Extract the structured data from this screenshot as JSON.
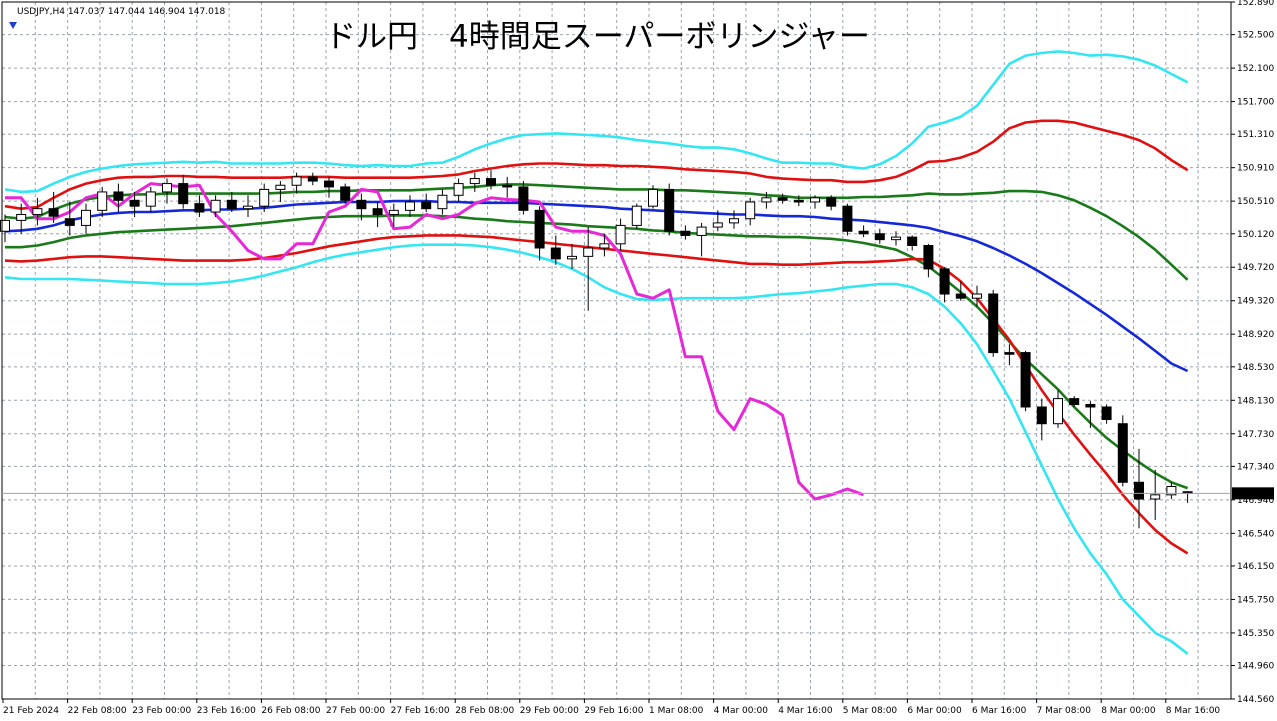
{
  "header": {
    "symbol_info": "USDJPY,H4  147.037 147.044 146.904 147.018",
    "title": "ドル円　4時間足スーパーボリンジャー"
  },
  "colors": {
    "background": "#ffffff",
    "grid": "#9aa3ad",
    "axis": "#000000",
    "sigma3": "#33e6f2",
    "sigma2": "#e01010",
    "sigma1": "#1a7a1a",
    "mid": "#1428d8",
    "lagging": "#e628d6",
    "candle_bull": "#ffffff",
    "candle_bear": "#000000",
    "price_tag_bg": "#000000",
    "price_tag_fg": "#ffffff",
    "expert_marker": "#1f3fc9"
  },
  "icons": {
    "expert_marker": "down-triangle-icon"
  },
  "chart_data": {
    "type": "candlestick",
    "symbol": "USDJPY",
    "timeframe": "H4",
    "current_price_label": "147.018",
    "y_ticks": [
      "152.890",
      "152.500",
      "152.100",
      "151.700",
      "151.310",
      "150.910",
      "150.510",
      "150.120",
      "149.720",
      "149.320",
      "148.920",
      "148.530",
      "148.130",
      "147.730",
      "147.340",
      "146.940",
      "146.540",
      "146.150",
      "145.750",
      "145.350",
      "144.960",
      "144.560"
    ],
    "x_ticks": [
      "21 Feb 2024",
      "22 Feb 08:00",
      "23 Feb 00:00",
      "23 Feb 16:00",
      "26 Feb 08:00",
      "27 Feb 00:00",
      "27 Feb 16:00",
      "28 Feb 08:00",
      "29 Feb 00:00",
      "29 Feb 16:00",
      "1 Mar 08:00",
      "4 Mar 00:00",
      "4 Mar 16:00",
      "5 Mar 08:00",
      "6 Mar 00:00",
      "6 Mar 16:00",
      "7 Mar 08:00",
      "8 Mar 00:00",
      "8 Mar 16:00"
    ],
    "bar_count": 74,
    "ylim": [
      144.56,
      152.89
    ],
    "candles": [
      {
        "o": 150.15,
        "h": 150.35,
        "l": 150.02,
        "c": 150.28
      },
      {
        "o": 150.28,
        "h": 150.48,
        "l": 150.12,
        "c": 150.35
      },
      {
        "o": 150.35,
        "h": 150.55,
        "l": 150.22,
        "c": 150.42
      },
      {
        "o": 150.42,
        "h": 150.62,
        "l": 150.25,
        "c": 150.33
      },
      {
        "o": 150.3,
        "h": 150.5,
        "l": 150.1,
        "c": 150.22
      },
      {
        "o": 150.22,
        "h": 150.48,
        "l": 150.12,
        "c": 150.4
      },
      {
        "o": 150.4,
        "h": 150.68,
        "l": 150.32,
        "c": 150.62
      },
      {
        "o": 150.62,
        "h": 150.72,
        "l": 150.38,
        "c": 150.52
      },
      {
        "o": 150.52,
        "h": 150.62,
        "l": 150.32,
        "c": 150.45
      },
      {
        "o": 150.45,
        "h": 150.68,
        "l": 150.38,
        "c": 150.62
      },
      {
        "o": 150.62,
        "h": 150.78,
        "l": 150.48,
        "c": 150.72
      },
      {
        "o": 150.72,
        "h": 150.82,
        "l": 150.42,
        "c": 150.48
      },
      {
        "o": 150.48,
        "h": 150.58,
        "l": 150.32,
        "c": 150.38
      },
      {
        "o": 150.38,
        "h": 150.58,
        "l": 150.32,
        "c": 150.52
      },
      {
        "o": 150.52,
        "h": 150.62,
        "l": 150.38,
        "c": 150.42
      },
      {
        "o": 150.42,
        "h": 150.58,
        "l": 150.32,
        "c": 150.45
      },
      {
        "o": 150.45,
        "h": 150.72,
        "l": 150.38,
        "c": 150.65
      },
      {
        "o": 150.65,
        "h": 150.75,
        "l": 150.5,
        "c": 150.7
      },
      {
        "o": 150.7,
        "h": 150.85,
        "l": 150.6,
        "c": 150.8
      },
      {
        "o": 150.8,
        "h": 150.85,
        "l": 150.7,
        "c": 150.75
      },
      {
        "o": 150.75,
        "h": 150.8,
        "l": 150.55,
        "c": 150.68
      },
      {
        "o": 150.68,
        "h": 150.72,
        "l": 150.48,
        "c": 150.52
      },
      {
        "o": 150.52,
        "h": 150.6,
        "l": 150.28,
        "c": 150.42
      },
      {
        "o": 150.42,
        "h": 150.5,
        "l": 150.2,
        "c": 150.35
      },
      {
        "o": 150.35,
        "h": 150.48,
        "l": 150.2,
        "c": 150.4
      },
      {
        "o": 150.4,
        "h": 150.58,
        "l": 150.32,
        "c": 150.5
      },
      {
        "o": 150.5,
        "h": 150.6,
        "l": 150.38,
        "c": 150.42
      },
      {
        "o": 150.42,
        "h": 150.65,
        "l": 150.35,
        "c": 150.58
      },
      {
        "o": 150.58,
        "h": 150.78,
        "l": 150.5,
        "c": 150.72
      },
      {
        "o": 150.72,
        "h": 150.85,
        "l": 150.62,
        "c": 150.78
      },
      {
        "o": 150.78,
        "h": 150.88,
        "l": 150.65,
        "c": 150.7
      },
      {
        "o": 150.7,
        "h": 150.8,
        "l": 150.55,
        "c": 150.68
      },
      {
        "o": 150.68,
        "h": 150.75,
        "l": 150.35,
        "c": 150.4
      },
      {
        "o": 150.4,
        "h": 150.45,
        "l": 149.8,
        "c": 149.95
      },
      {
        "o": 149.95,
        "h": 150.1,
        "l": 149.75,
        "c": 149.82
      },
      {
        "o": 149.82,
        "h": 150.0,
        "l": 149.7,
        "c": 149.85
      },
      {
        "o": 149.85,
        "h": 150.2,
        "l": 149.2,
        "c": 149.95
      },
      {
        "o": 149.95,
        "h": 150.12,
        "l": 149.85,
        "c": 150.0
      },
      {
        "o": 150.0,
        "h": 150.3,
        "l": 149.92,
        "c": 150.22
      },
      {
        "o": 150.22,
        "h": 150.48,
        "l": 150.18,
        "c": 150.45
      },
      {
        "o": 150.45,
        "h": 150.7,
        "l": 150.42,
        "c": 150.65
      },
      {
        "o": 150.65,
        "h": 150.72,
        "l": 150.1,
        "c": 150.15
      },
      {
        "o": 150.15,
        "h": 150.22,
        "l": 150.05,
        "c": 150.1
      },
      {
        "o": 150.1,
        "h": 150.25,
        "l": 149.85,
        "c": 150.2
      },
      {
        "o": 150.2,
        "h": 150.4,
        "l": 150.15,
        "c": 150.25
      },
      {
        "o": 150.25,
        "h": 150.4,
        "l": 150.18,
        "c": 150.3
      },
      {
        "o": 150.3,
        "h": 150.55,
        "l": 150.22,
        "c": 150.5
      },
      {
        "o": 150.5,
        "h": 150.62,
        "l": 150.42,
        "c": 150.55
      },
      {
        "o": 150.55,
        "h": 150.6,
        "l": 150.48,
        "c": 150.52
      },
      {
        "o": 150.52,
        "h": 150.58,
        "l": 150.45,
        "c": 150.5
      },
      {
        "o": 150.5,
        "h": 150.58,
        "l": 150.42,
        "c": 150.55
      },
      {
        "o": 150.55,
        "h": 150.58,
        "l": 150.4,
        "c": 150.45
      },
      {
        "o": 150.45,
        "h": 150.48,
        "l": 150.1,
        "c": 150.15
      },
      {
        "o": 150.15,
        "h": 150.22,
        "l": 150.08,
        "c": 150.12
      },
      {
        "o": 150.12,
        "h": 150.18,
        "l": 150.0,
        "c": 150.05
      },
      {
        "o": 150.05,
        "h": 150.15,
        "l": 149.98,
        "c": 150.08
      },
      {
        "o": 150.08,
        "h": 150.1,
        "l": 149.92,
        "c": 149.98
      },
      {
        "o": 149.98,
        "h": 150.0,
        "l": 149.6,
        "c": 149.7
      },
      {
        "o": 149.7,
        "h": 149.72,
        "l": 149.3,
        "c": 149.4
      },
      {
        "o": 149.4,
        "h": 149.55,
        "l": 149.32,
        "c": 149.35
      },
      {
        "o": 149.35,
        "h": 149.5,
        "l": 149.25,
        "c": 149.4
      },
      {
        "o": 149.4,
        "h": 149.45,
        "l": 148.65,
        "c": 148.7
      },
      {
        "o": 148.7,
        "h": 148.8,
        "l": 148.55,
        "c": 148.68
      },
      {
        "o": 148.7,
        "h": 148.72,
        "l": 148.0,
        "c": 148.05
      },
      {
        "o": 148.05,
        "h": 148.15,
        "l": 147.65,
        "c": 147.85
      },
      {
        "o": 147.85,
        "h": 148.25,
        "l": 147.8,
        "c": 148.15
      },
      {
        "o": 148.15,
        "h": 148.18,
        "l": 148.05,
        "c": 148.08
      },
      {
        "o": 148.08,
        "h": 148.12,
        "l": 147.8,
        "c": 148.05
      },
      {
        "o": 148.05,
        "h": 148.08,
        "l": 147.85,
        "c": 147.9
      },
      {
        "o": 147.85,
        "h": 147.95,
        "l": 147.1,
        "c": 147.15
      },
      {
        "o": 147.15,
        "h": 147.55,
        "l": 146.6,
        "c": 146.95
      },
      {
        "o": 146.95,
        "h": 147.3,
        "l": 146.7,
        "c": 147.0
      },
      {
        "o": 147.0,
        "h": 147.15,
        "l": 146.95,
        "c": 147.1
      },
      {
        "o": 147.037,
        "h": 147.044,
        "l": 146.904,
        "c": 147.018
      }
    ],
    "bands": [
      {
        "name": "+3σ",
        "color": "#33e6f2",
        "values": [
          150.65,
          150.62,
          150.63,
          150.72,
          150.8,
          150.86,
          150.9,
          150.93,
          150.95,
          150.96,
          150.97,
          150.98,
          150.97,
          150.98,
          150.96,
          150.96,
          150.96,
          150.96,
          150.97,
          150.97,
          150.96,
          150.94,
          150.93,
          150.94,
          150.93,
          150.93,
          150.96,
          150.97,
          151.04,
          151.13,
          151.2,
          151.26,
          151.3,
          151.31,
          151.32,
          151.31,
          151.3,
          151.29,
          151.27,
          151.24,
          151.22,
          151.2,
          151.17,
          151.15,
          151.15,
          151.13,
          151.08,
          151.02,
          150.97,
          150.97,
          150.96,
          150.96,
          150.92,
          150.9,
          150.95,
          151.05,
          151.2,
          151.4,
          151.45,
          151.52,
          151.65,
          151.9,
          152.15,
          152.25,
          152.28,
          152.3,
          152.28,
          152.25,
          152.26,
          152.24,
          152.2,
          152.13,
          152.03,
          151.93
        ]
      },
      {
        "name": "+2σ",
        "color": "#e01010",
        "values": [
          150.45,
          150.42,
          150.44,
          150.55,
          150.65,
          150.72,
          150.76,
          150.79,
          150.8,
          150.8,
          150.81,
          150.81,
          150.8,
          150.8,
          150.79,
          150.79,
          150.79,
          150.79,
          150.8,
          150.8,
          150.8,
          150.79,
          150.79,
          150.79,
          150.79,
          150.79,
          150.8,
          150.81,
          150.83,
          150.87,
          150.9,
          150.93,
          150.95,
          150.96,
          150.96,
          150.95,
          150.94,
          150.94,
          150.93,
          150.93,
          150.92,
          150.91,
          150.89,
          150.88,
          150.87,
          150.86,
          150.84,
          150.8,
          150.78,
          150.77,
          150.76,
          150.76,
          150.74,
          150.74,
          150.76,
          150.8,
          150.88,
          150.98,
          150.99,
          151.03,
          151.1,
          151.22,
          151.38,
          151.45,
          151.47,
          151.47,
          151.45,
          151.4,
          151.35,
          151.3,
          151.24,
          151.14,
          151.0,
          150.88
        ]
      },
      {
        "name": "+1σ",
        "color": "#1a7a1a",
        "values": [
          150.32,
          150.3,
          150.32,
          150.41,
          150.48,
          150.53,
          150.56,
          150.58,
          150.59,
          150.59,
          150.6,
          150.6,
          150.6,
          150.6,
          150.6,
          150.6,
          150.6,
          150.61,
          150.62,
          150.62,
          150.63,
          150.63,
          150.64,
          150.64,
          150.64,
          150.64,
          150.65,
          150.66,
          150.67,
          150.68,
          150.7,
          150.71,
          150.71,
          150.7,
          150.69,
          150.68,
          150.67,
          150.66,
          150.65,
          150.65,
          150.65,
          150.64,
          150.64,
          150.63,
          150.62,
          150.61,
          150.6,
          150.58,
          150.57,
          150.55,
          150.55,
          150.55,
          150.55,
          150.56,
          150.56,
          150.57,
          150.58,
          150.6,
          150.59,
          150.59,
          150.6,
          150.61,
          150.63,
          150.63,
          150.62,
          150.58,
          150.52,
          150.43,
          150.33,
          150.21,
          150.08,
          149.93,
          149.75,
          149.57
        ]
      },
      {
        "name": "MA",
        "color": "#1428d8",
        "values": [
          150.15,
          150.16,
          150.18,
          150.22,
          150.28,
          150.32,
          150.35,
          150.37,
          150.38,
          150.38,
          150.39,
          150.4,
          150.4,
          150.41,
          150.41,
          150.42,
          150.43,
          150.45,
          150.47,
          150.48,
          150.49,
          150.5,
          150.5,
          150.5,
          150.51,
          150.51,
          150.51,
          150.5,
          150.5,
          150.49,
          150.49,
          150.49,
          150.49,
          150.48,
          150.47,
          150.46,
          150.45,
          150.44,
          150.42,
          150.41,
          150.4,
          150.39,
          150.38,
          150.37,
          150.36,
          150.35,
          150.35,
          150.34,
          150.33,
          150.33,
          150.32,
          150.3,
          150.29,
          150.28,
          150.26,
          150.24,
          150.22,
          150.19,
          150.14,
          150.09,
          150.03,
          149.95,
          149.86,
          149.76,
          149.65,
          149.53,
          149.41,
          149.28,
          149.15,
          149.01,
          148.87,
          148.72,
          148.57,
          148.48
        ]
      },
      {
        "name": "-1σ",
        "color": "#1a7a1a",
        "values": [
          149.96,
          149.96,
          149.98,
          150.02,
          150.07,
          150.1,
          150.12,
          150.14,
          150.15,
          150.16,
          150.17,
          150.18,
          150.19,
          150.2,
          150.21,
          150.23,
          150.25,
          150.27,
          150.29,
          150.31,
          150.32,
          150.33,
          150.33,
          150.33,
          150.34,
          150.34,
          150.34,
          150.33,
          150.32,
          150.3,
          150.29,
          150.27,
          150.26,
          150.25,
          150.24,
          150.23,
          150.21,
          150.2,
          150.19,
          150.18,
          150.16,
          150.15,
          150.13,
          150.12,
          150.11,
          150.1,
          150.09,
          150.09,
          150.08,
          150.08,
          150.07,
          150.06,
          150.04,
          150.01,
          149.97,
          149.93,
          149.84,
          149.73,
          149.58,
          149.42,
          149.25,
          149.05,
          148.83,
          148.62,
          148.44,
          148.26,
          148.05,
          147.86,
          147.68,
          147.53,
          147.39,
          147.26,
          147.15,
          147.08
        ]
      },
      {
        "name": "-2σ",
        "color": "#e01010",
        "values": [
          149.8,
          149.79,
          149.8,
          149.82,
          149.84,
          149.85,
          149.85,
          149.84,
          149.83,
          149.82,
          149.81,
          149.8,
          149.8,
          149.8,
          149.8,
          149.81,
          149.83,
          149.86,
          149.89,
          149.93,
          149.97,
          150.0,
          150.03,
          150.06,
          150.08,
          150.09,
          150.1,
          150.1,
          150.1,
          150.09,
          150.08,
          150.06,
          150.04,
          150.02,
          150.0,
          149.98,
          149.96,
          149.94,
          149.92,
          149.9,
          149.88,
          149.86,
          149.84,
          149.82,
          149.8,
          149.78,
          149.76,
          149.76,
          149.75,
          149.75,
          149.76,
          149.77,
          149.78,
          149.78,
          149.79,
          149.8,
          149.82,
          149.81,
          149.7,
          149.55,
          149.35,
          149.1,
          148.85,
          148.55,
          148.25,
          147.98,
          147.72,
          147.48,
          147.25,
          147.0,
          146.78,
          146.58,
          146.42,
          146.3
        ]
      },
      {
        "name": "-3σ",
        "color": "#33e6f2",
        "values": [
          149.6,
          149.58,
          149.58,
          149.58,
          149.58,
          149.57,
          149.56,
          149.55,
          149.54,
          149.53,
          149.52,
          149.52,
          149.52,
          149.53,
          149.55,
          149.58,
          149.62,
          149.67,
          149.72,
          149.78,
          149.83,
          149.87,
          149.9,
          149.93,
          149.96,
          149.98,
          149.99,
          149.99,
          149.99,
          149.98,
          149.96,
          149.93,
          149.89,
          149.84,
          149.78,
          149.7,
          149.6,
          149.48,
          149.4,
          149.34,
          149.33,
          149.34,
          149.35,
          149.35,
          149.35,
          149.35,
          149.36,
          149.38,
          149.4,
          149.41,
          149.43,
          149.45,
          149.48,
          149.5,
          149.52,
          149.52,
          149.48,
          149.4,
          149.25,
          149.05,
          148.8,
          148.48,
          148.15,
          147.75,
          147.35,
          146.95,
          146.6,
          146.3,
          146.05,
          145.75,
          145.55,
          145.35,
          145.25,
          145.1
        ]
      }
    ],
    "lagging_span": {
      "name": "Lagging",
      "color": "#e628d6",
      "values": [
        150.55,
        150.55,
        150.3,
        150.3,
        150.38,
        150.55,
        150.6,
        150.45,
        150.6,
        150.72,
        150.7,
        150.68,
        150.7,
        150.35,
        150.15,
        149.92,
        149.82,
        149.82,
        150.0,
        150.0,
        150.38,
        150.45,
        150.65,
        150.62,
        150.18,
        150.2,
        150.35,
        150.3,
        150.35,
        150.48,
        150.55,
        150.53,
        150.52,
        150.5,
        150.2,
        150.15,
        150.15,
        150.1,
        149.88,
        149.4,
        149.35,
        149.45,
        148.65,
        148.65,
        148.0,
        147.78,
        148.15,
        148.08,
        147.95,
        147.15,
        146.95,
        147.0,
        147.07,
        147.0
      ]
    }
  }
}
